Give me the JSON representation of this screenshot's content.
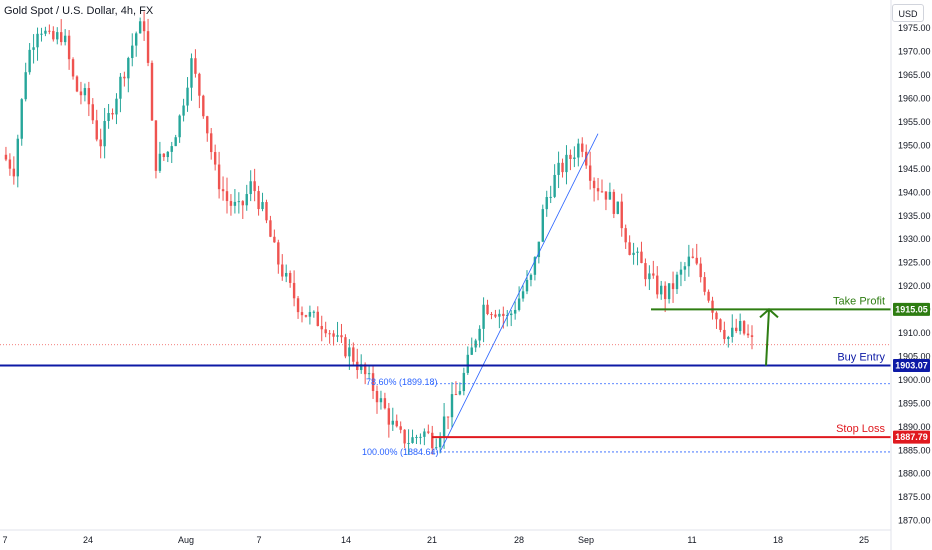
{
  "header": {
    "title": "Gold Spot / U.S. Dollar, 4h, FX",
    "currency_button": "USD"
  },
  "colors": {
    "up": "#26a69a",
    "down": "#ef5350",
    "take_profit": "#2e7d12",
    "buy_entry": "#0d1aa6",
    "stop_loss": "#e0191f",
    "fib": "#2962ff",
    "current_price": "#ef5350"
  },
  "chart_data": {
    "type": "candlestick",
    "symbol": "Gold Spot / U.S. Dollar",
    "timeframe": "4h",
    "y_axis": {
      "range": [
        1868,
        1981
      ],
      "ticks": [
        "1975.00",
        "1970.00",
        "1965.00",
        "1960.00",
        "1955.00",
        "1950.00",
        "1945.00",
        "1940.00",
        "1935.00",
        "1930.00",
        "1925.00",
        "1920.00",
        "1915.00",
        "1910.00",
        "1905.00",
        "1900.00",
        "1895.00",
        "1890.00",
        "1885.00",
        "1880.00",
        "1875.00",
        "1870.00"
      ]
    },
    "x_axis": {
      "ticks": [
        "7",
        "24",
        "Aug",
        "7",
        "14",
        "21",
        "28",
        "Sep",
        "11",
        "18",
        "25"
      ]
    },
    "levels": [
      {
        "name": "Take Profit",
        "price": 1915.05,
        "tag": "1915.05"
      },
      {
        "name": "Buy Entry",
        "price": 1903.07,
        "tag": "1903.07"
      },
      {
        "name": "Stop Loss",
        "price": 1887.79,
        "tag": "1887.79"
      }
    ],
    "fib_labels": [
      {
        "text": "78.60% (1899.18)",
        "price": 1899.18
      },
      {
        "text": "100.00% (1884.64)",
        "price": 1884.64
      }
    ],
    "current_price": 1907.5,
    "price_path": [
      {
        "t": 0.0,
        "p": 1948
      },
      {
        "t": 0.02,
        "p": 1945
      },
      {
        "t": 0.04,
        "p": 1968
      },
      {
        "t": 0.06,
        "p": 1976
      },
      {
        "t": 0.08,
        "p": 1972
      },
      {
        "t": 0.1,
        "p": 1974
      },
      {
        "t": 0.12,
        "p": 1962
      },
      {
        "t": 0.14,
        "p": 1960
      },
      {
        "t": 0.16,
        "p": 1950
      },
      {
        "t": 0.18,
        "p": 1958
      },
      {
        "t": 0.2,
        "p": 1966
      },
      {
        "t": 0.22,
        "p": 1974
      },
      {
        "t": 0.235,
        "p": 1976
      },
      {
        "t": 0.25,
        "p": 1946
      },
      {
        "t": 0.27,
        "p": 1948
      },
      {
        "t": 0.29,
        "p": 1955
      },
      {
        "t": 0.31,
        "p": 1968
      },
      {
        "t": 0.33,
        "p": 1958
      },
      {
        "t": 0.35,
        "p": 1944
      },
      {
        "t": 0.37,
        "p": 1938
      },
      {
        "t": 0.39,
        "p": 1936
      },
      {
        "t": 0.41,
        "p": 1942
      },
      {
        "t": 0.43,
        "p": 1935
      },
      {
        "t": 0.45,
        "p": 1926
      },
      {
        "t": 0.47,
        "p": 1920
      },
      {
        "t": 0.49,
        "p": 1915
      },
      {
        "t": 0.51,
        "p": 1913
      },
      {
        "t": 0.53,
        "p": 1912
      },
      {
        "t": 0.55,
        "p": 1908
      },
      {
        "t": 0.57,
        "p": 1906
      },
      {
        "t": 0.59,
        "p": 1902
      },
      {
        "t": 0.61,
        "p": 1898
      },
      {
        "t": 0.63,
        "p": 1893
      },
      {
        "t": 0.65,
        "p": 1888
      },
      {
        "t": 0.67,
        "p": 1887
      },
      {
        "t": 0.69,
        "p": 1889
      },
      {
        "t": 0.71,
        "p": 1887
      },
      {
        "t": 0.73,
        "p": 1893
      },
      {
        "t": 0.75,
        "p": 1898
      },
      {
        "t": 0.77,
        "p": 1906
      },
      {
        "t": 0.79,
        "p": 1916
      },
      {
        "t": 0.81,
        "p": 1915
      },
      {
        "t": 0.83,
        "p": 1913
      },
      {
        "t": 0.85,
        "p": 1918
      },
      {
        "t": 0.87,
        "p": 1922
      },
      {
        "t": 0.89,
        "p": 1938
      },
      {
        "t": 0.91,
        "p": 1944
      },
      {
        "t": 0.93,
        "p": 1947
      },
      {
        "t": 0.95,
        "p": 1951
      },
      {
        "t": 0.97,
        "p": 1942
      },
      {
        "t": 0.99,
        "p": 1940
      },
      {
        "t": 1.01,
        "p": 1936
      },
      {
        "t": 1.03,
        "p": 1928
      },
      {
        "t": 1.05,
        "p": 1924
      },
      {
        "t": 1.07,
        "p": 1920
      },
      {
        "t": 1.09,
        "p": 1918
      },
      {
        "t": 1.11,
        "p": 1922
      },
      {
        "t": 1.13,
        "p": 1926
      },
      {
        "t": 1.15,
        "p": 1921
      },
      {
        "t": 1.17,
        "p": 1914
      },
      {
        "t": 1.19,
        "p": 1909
      },
      {
        "t": 1.21,
        "p": 1911
      },
      {
        "t": 1.23,
        "p": 1908
      }
    ]
  }
}
